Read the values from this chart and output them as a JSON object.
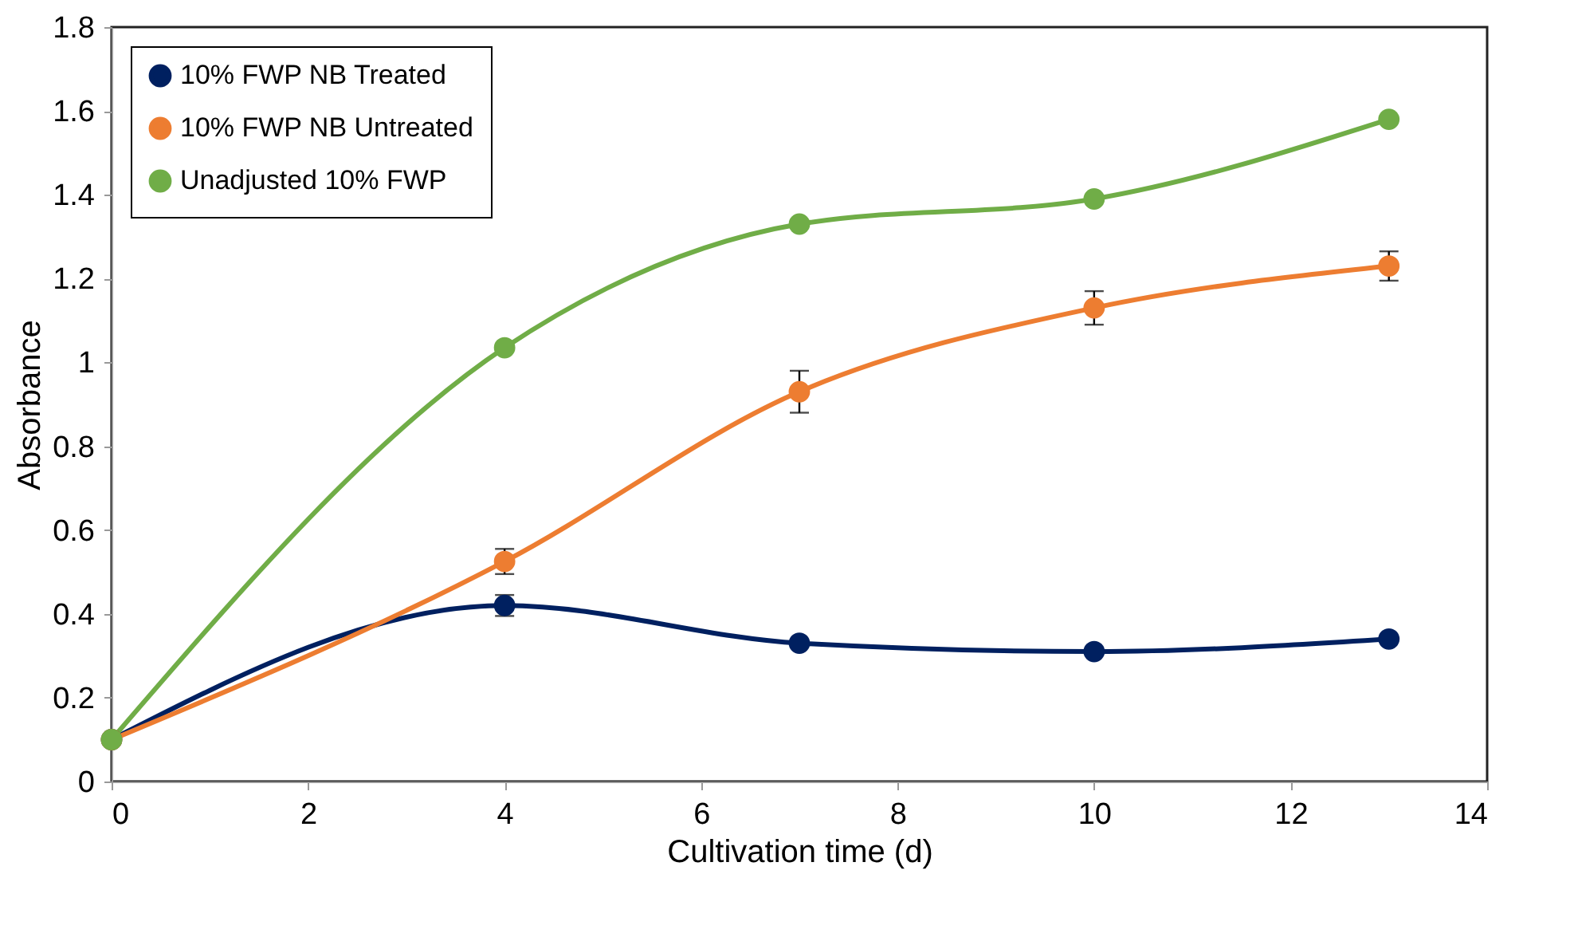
{
  "chart_data": {
    "type": "line",
    "xlabel": "Cultivation time (d)",
    "ylabel": "Absorbance",
    "x": [
      0,
      4,
      7,
      10,
      13
    ],
    "series": [
      {
        "name": "10% FWP NB Treated",
        "color": "#002060",
        "values": [
          0.1,
          0.42,
          0.33,
          0.31,
          0.34
        ],
        "errors": [
          null,
          0.025,
          null,
          null,
          null
        ]
      },
      {
        "name": "10% FWP NB Untreated",
        "color": "#ed7d31",
        "values": [
          0.1,
          0.525,
          0.93,
          1.13,
          1.23
        ],
        "errors": [
          null,
          0.03,
          0.05,
          0.04,
          0.035
        ]
      },
      {
        "name": "Unadjusted 10% FWP",
        "color": "#70ad47",
        "values": [
          0.1,
          1.035,
          1.33,
          1.39,
          1.58
        ]
      }
    ],
    "xlim": [
      0,
      14
    ],
    "xticks": [
      0,
      2,
      4,
      6,
      8,
      10,
      12,
      14
    ],
    "ylim": [
      0,
      1.8
    ],
    "yticks": [
      0,
      0.2,
      0.4,
      0.6,
      0.8,
      1,
      1.2,
      1.4,
      1.6,
      1.8
    ],
    "grid": false,
    "legend": "top left",
    "marker": "circle",
    "line_style": "solid"
  }
}
